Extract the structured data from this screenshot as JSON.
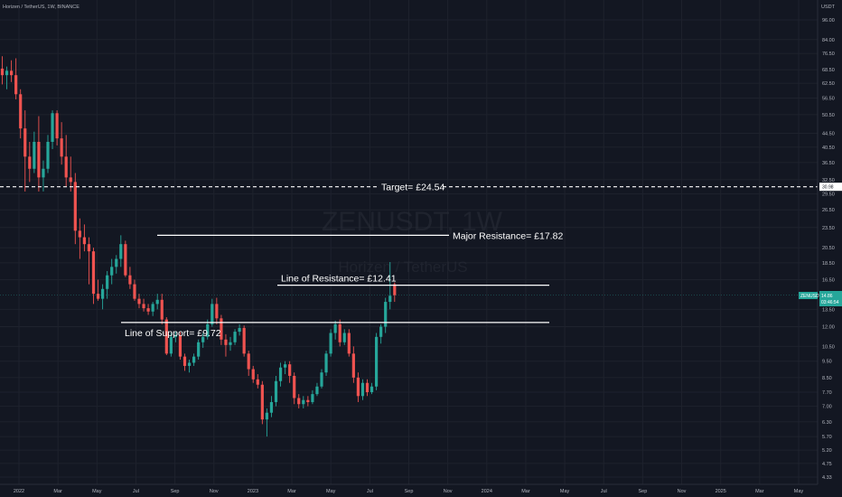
{
  "header": {
    "symbol_desc": "Horizen / TetherUS, 1W, BINANCE",
    "currency": "USDT"
  },
  "watermark": {
    "ticker": "ZENUSDT, 1W",
    "name": "Horizen / TetherUS"
  },
  "last_price": {
    "symbol": "ZENUSDT",
    "value": "14.86",
    "countdown": "03:46:54",
    "color": "#26a69a"
  },
  "target_tag": {
    "value": "30.98",
    "color": "#ffffff"
  },
  "colors": {
    "background": "#131722",
    "up": "#26a69a",
    "down": "#ef5350",
    "line": "#ffffff"
  },
  "chart_data": {
    "type": "candlestick",
    "interval": "1W",
    "scale": "log",
    "y_axis_ticks": [
      "96.00",
      "84.00",
      "76.50",
      "68.50",
      "62.50",
      "56.50",
      "50.50",
      "44.50",
      "40.50",
      "36.50",
      "32.50",
      "29.50",
      "26.50",
      "23.50",
      "20.50",
      "18.50",
      "16.50",
      "13.50",
      "12.00",
      "10.50",
      "9.50",
      "8.50",
      "7.70",
      "7.00",
      "6.30",
      "5.70",
      "5.20",
      "4.75",
      "4.33"
    ],
    "x_axis_ticks": [
      "2022",
      "Mar",
      "May",
      "Jul",
      "Sep",
      "Nov",
      "2023",
      "Mar",
      "May",
      "Jul",
      "Sep",
      "Nov",
      "2024",
      "Mar",
      "May",
      "Jul",
      "Sep",
      "Nov",
      "2025",
      "Mar",
      "May"
    ],
    "annotations": [
      {
        "label": "Target= £24.54",
        "price": 30.98,
        "style": "dashed"
      },
      {
        "label": "Major Resistance= £17.82",
        "price": 22.3,
        "style": "solid"
      },
      {
        "label": "Line of Resistance= £12.41",
        "price": 15.9,
        "style": "solid"
      },
      {
        "label": "Line of Support= £9.72",
        "price": 12.35,
        "style": "solid"
      }
    ],
    "candles": [
      [
        69,
        75,
        62,
        66
      ],
      [
        66,
        70,
        60,
        68
      ],
      [
        68,
        73,
        63,
        66
      ],
      [
        66,
        74,
        56,
        58
      ],
      [
        58,
        60,
        43,
        46
      ],
      [
        46,
        52,
        30,
        38
      ],
      [
        38,
        42,
        32,
        35
      ],
      [
        35,
        45,
        34,
        42
      ],
      [
        42,
        50,
        30,
        33
      ],
      [
        33,
        37,
        30,
        35
      ],
      [
        35,
        44,
        34,
        42
      ],
      [
        42,
        52,
        40,
        51
      ],
      [
        51,
        52,
        41,
        43
      ],
      [
        43,
        48,
        36,
        38
      ],
      [
        38,
        44,
        31,
        33
      ],
      [
        33,
        38,
        30,
        32
      ],
      [
        32,
        34,
        21,
        23
      ],
      [
        23,
        25,
        19,
        22
      ],
      [
        22,
        24,
        20,
        21
      ],
      [
        21,
        22,
        16,
        20
      ],
      [
        20,
        20.5,
        14,
        15
      ],
      [
        15,
        16.5,
        14.3,
        14.5
      ],
      [
        14.5,
        16,
        13.5,
        15.5
      ],
      [
        15.5,
        17.5,
        14.5,
        17
      ],
      [
        17,
        19,
        16,
        18
      ],
      [
        18,
        19.5,
        17.2,
        19
      ],
      [
        19,
        22.3,
        18,
        21
      ],
      [
        21,
        21.5,
        16.8,
        17
      ],
      [
        17,
        18,
        15.5,
        16
      ],
      [
        16,
        16.5,
        14.3,
        14.5
      ],
      [
        14.5,
        15,
        13.6,
        14
      ],
      [
        14,
        14.5,
        13.3,
        13.6
      ],
      [
        13.6,
        14,
        13,
        13.3
      ],
      [
        13.3,
        14.2,
        12.9,
        14
      ],
      [
        14,
        15,
        13.5,
        14.4
      ],
      [
        14.4,
        15,
        12.2,
        12.6
      ],
      [
        12.6,
        12.8,
        9.9,
        10
      ],
      [
        10,
        11.5,
        9.8,
        11.2
      ],
      [
        11.2,
        11.6,
        10.8,
        11.3
      ],
      [
        11.3,
        11.6,
        9.6,
        9.8
      ],
      [
        9.8,
        10,
        8.9,
        9.2
      ],
      [
        9.2,
        9.6,
        8.8,
        9.4
      ],
      [
        9.4,
        10,
        9.2,
        9.8
      ],
      [
        9.8,
        11,
        9.6,
        10.8
      ],
      [
        10.8,
        11.5,
        10.4,
        11.2
      ],
      [
        11.2,
        12.6,
        11,
        12.2
      ],
      [
        12.2,
        14.5,
        12,
        14
      ],
      [
        14,
        14.6,
        12.2,
        12.7
      ],
      [
        12.7,
        13,
        10.6,
        11
      ],
      [
        11,
        11.4,
        9.8,
        10.6
      ],
      [
        10.6,
        11.2,
        10.2,
        10.8
      ],
      [
        10.8,
        11.8,
        10.6,
        11.6
      ],
      [
        11.6,
        12.2,
        11.3,
        11.9
      ],
      [
        11.9,
        12.1,
        9.8,
        10
      ],
      [
        10,
        10.2,
        8.6,
        9
      ],
      [
        9,
        9.2,
        8.2,
        8.4
      ],
      [
        8.4,
        8.7,
        7.9,
        8.1
      ],
      [
        8.1,
        8.3,
        6.2,
        6.4
      ],
      [
        6.4,
        6.9,
        5.7,
        6.7
      ],
      [
        6.7,
        7.5,
        6.5,
        7.2
      ],
      [
        7.2,
        8.6,
        7,
        8.3
      ],
      [
        8.3,
        9.4,
        8,
        9.1
      ],
      [
        9.1,
        9.5,
        8.7,
        9.3
      ],
      [
        9.3,
        9.5,
        8.2,
        8.6
      ],
      [
        8.6,
        8.8,
        7.1,
        7.4
      ],
      [
        7.4,
        7.6,
        6.9,
        7.1
      ],
      [
        7.1,
        7.5,
        6.9,
        7.3
      ],
      [
        7.3,
        7.5,
        7.0,
        7.2
      ],
      [
        7.2,
        7.8,
        7.1,
        7.6
      ],
      [
        7.6,
        8.2,
        7.5,
        8.0
      ],
      [
        8.0,
        9.0,
        7.9,
        8.8
      ],
      [
        8.8,
        10.2,
        8.6,
        10
      ],
      [
        10,
        11.8,
        9.8,
        11.5
      ],
      [
        11.5,
        12.5,
        11,
        12.2
      ],
      [
        12.2,
        12.6,
        10.5,
        10.8
      ],
      [
        10.8,
        11.8,
        10.6,
        11.5
      ],
      [
        11.5,
        11.8,
        9.8,
        10
      ],
      [
        10,
        10.5,
        8.2,
        8.5
      ],
      [
        8.5,
        8.8,
        7.2,
        7.5
      ],
      [
        7.5,
        8.4,
        7.3,
        8.2
      ],
      [
        8.2,
        8.4,
        7.5,
        7.7
      ],
      [
        7.7,
        8.2,
        7.6,
        8.0
      ],
      [
        8.0,
        11.5,
        7.8,
        11.2
      ],
      [
        11.2,
        12.2,
        10.7,
        12
      ],
      [
        12,
        14.6,
        11.5,
        14.2
      ],
      [
        14.2,
        18.6,
        13.5,
        14.8
      ],
      [
        16,
        16.2,
        14.2,
        14.86
      ]
    ]
  }
}
